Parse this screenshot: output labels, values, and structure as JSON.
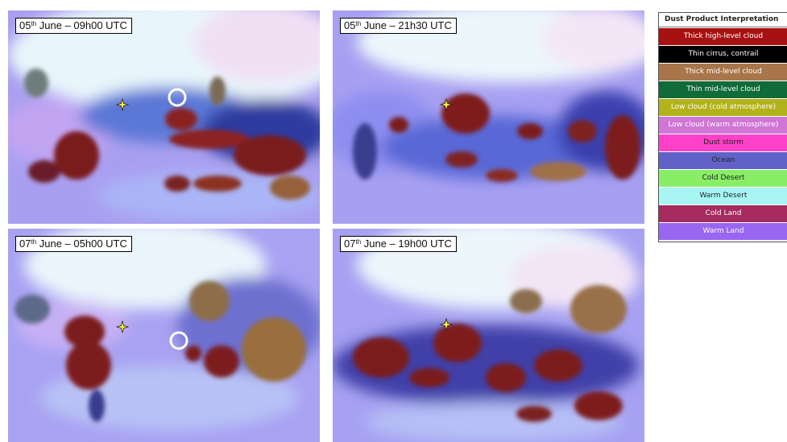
{
  "panels": [
    {
      "label_day": "05",
      "label_sup": "th",
      "label_rest": " June – 09h00 UTC"
    },
    {
      "label_day": "05",
      "label_sup": "th",
      "label_rest": " June – 21h30 UTC"
    },
    {
      "label_day": "07",
      "label_sup": "th",
      "label_rest": " June – 05h00 UTC"
    },
    {
      "label_day": "07",
      "label_sup": "th",
      "label_rest": " June – 19h00 UTC"
    }
  ],
  "legend": {
    "title": "Dust Product Interpretation",
    "items": [
      {
        "label": "Thick high-level cloud",
        "color": "#a81111",
        "text_color": "#ffffff"
      },
      {
        "label": "Thin cirrus, contrail",
        "color": "#000000",
        "text_color": "#ffffff"
      },
      {
        "label": "Thick mid-level cloud",
        "color": "#a8764a",
        "text_color": "#ffffff"
      },
      {
        "label": "Thin mid-level cloud",
        "color": "#0f6b39",
        "text_color": "#ffffff"
      },
      {
        "label": "Low cloud (cold atmosphere)",
        "color": "#b2b21a",
        "text_color": "#ffffff"
      },
      {
        "label": "Low cloud (warm atmosphere)",
        "color": "#cf76d6",
        "text_color": "#ffffff"
      },
      {
        "label": "Dust storm",
        "color": "#ff40c8",
        "text_color": "#222222"
      },
      {
        "label": "Ocean",
        "color": "#6161c8",
        "text_color": "#222222"
      },
      {
        "label": "Cold Desert",
        "color": "#88ee66",
        "text_color": "#222222"
      },
      {
        "label": "Warm Desert",
        "color": "#a8f6f4",
        "text_color": "#222222"
      },
      {
        "label": "Cold Land",
        "color": "#a52a5d",
        "text_color": "#ffffff"
      },
      {
        "label": "Warm Land",
        "color": "#9966f2",
        "text_color": "#ffffff"
      }
    ]
  },
  "markers": {
    "star_color": "#ffef3a",
    "circle_color": "#ffffff"
  }
}
